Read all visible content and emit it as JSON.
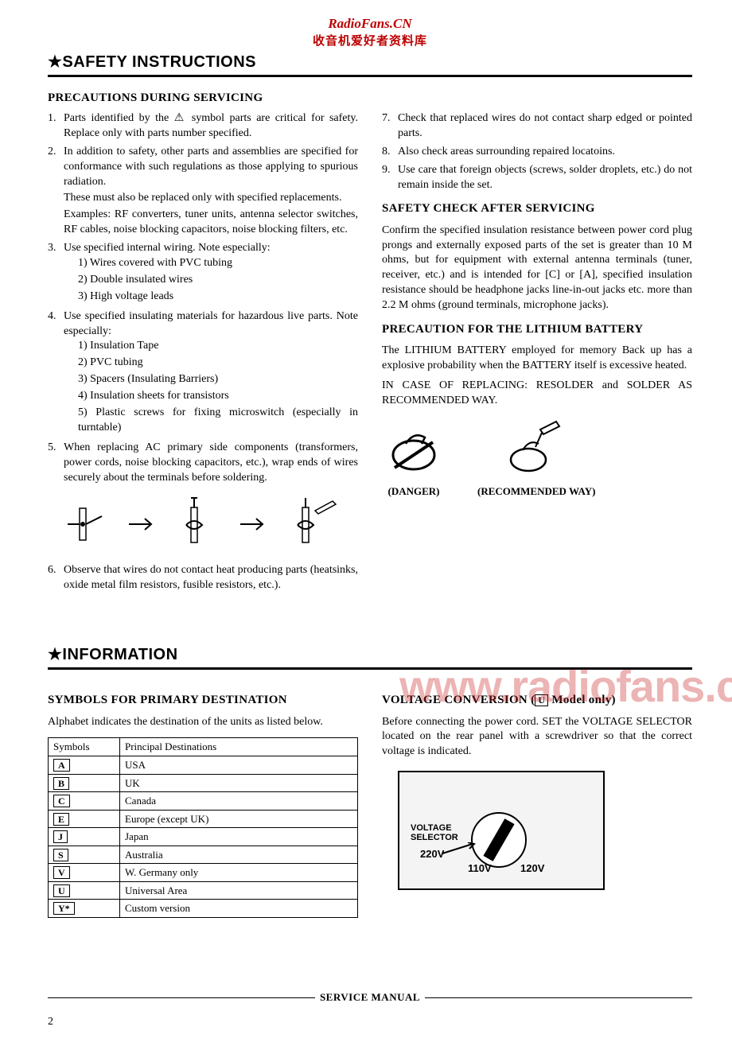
{
  "header": {
    "site_title": "RadioFans.CN",
    "site_subtitle": "收音机爱好者资料库"
  },
  "safety": {
    "title": "★SAFETY INSTRUCTIONS",
    "precautions_heading": "PRECAUTIONS DURING SERVICING",
    "items_left": [
      {
        "n": "1.",
        "text": "Parts identified by the ⚠ symbol parts are critical for safety. Replace only with parts number specified."
      },
      {
        "n": "2.",
        "text": "In addition to safety, other parts and assemblies are specified for conformance with such regulations as those applying to spurious radiation.",
        "extra": [
          "These must also be replaced only with specified replacements.",
          "Examples: RF converters, tuner units, antenna selector switches, RF cables, noise blocking capacitors, noise blocking filters, etc."
        ]
      },
      {
        "n": "3.",
        "text": "Use specified internal wiring. Note especially:",
        "sub": [
          "1) Wires covered with PVC tubing",
          "2) Double insulated wires",
          "3) High voltage leads"
        ]
      },
      {
        "n": "4.",
        "text": "Use specified insulating materials for hazardous live parts. Note especially:",
        "sub": [
          "1) Insulation Tape",
          "2) PVC tubing",
          "3) Spacers (Insulating Barriers)",
          "4) Insulation sheets for transistors",
          "5) Plastic screws for fixing microswitch (especially in turntable)"
        ]
      },
      {
        "n": "5.",
        "text": "When replacing AC primary side components (transformers, power cords, noise blocking capacitors, etc.), wrap ends of wires securely about the terminals before soldering."
      },
      {
        "n": "6.",
        "text": "Observe that wires do not contact heat producing parts (heatsinks, oxide metal film resistors, fusible resistors, etc.)."
      }
    ],
    "items_right_top": [
      {
        "n": "7.",
        "text": "Check that replaced wires do not contact sharp edged or pointed parts."
      },
      {
        "n": "8.",
        "text": "Also check areas surrounding repaired locatoins."
      },
      {
        "n": "9.",
        "text": "Use care that foreign objects (screws, solder droplets, etc.) do not remain inside the set."
      }
    ],
    "safety_check_heading": "SAFETY CHECK AFTER SERVICING",
    "safety_check_body": "Confirm the specified insulation resistance between power cord plug prongs and externally exposed parts of the set is greater than 10 M ohms, but for equipment with external antenna terminals (tuner, receiver, etc.) and is intended for [C] or [A], specified insulation resistance should be headphone jacks line-in-out jacks etc. more than 2.2 M ohms (ground terminals, microphone jacks).",
    "lithium_heading": "PRECAUTION FOR THE LITHIUM BATTERY",
    "lithium_body1": "The LITHIUM BATTERY employed for memory Back up has a explosive probability when the BATTERY itself is excessive heated.",
    "lithium_body2": "IN CASE OF REPLACING: RESOLDER and SOLDER AS RECOMMENDED WAY.",
    "danger_label": "(DANGER)",
    "recommended_label": "(RECOMMENDED WAY)"
  },
  "watermark": "www.radiofans.c",
  "information": {
    "title": "★INFORMATION",
    "symbols_heading": "SYMBOLS FOR PRIMARY DESTINATION",
    "symbols_intro": "Alphabet indicates the destination of the units as listed below.",
    "table": {
      "columns": [
        "Symbols",
        "Principal Destinations"
      ],
      "rows": [
        [
          "A",
          "USA"
        ],
        [
          "B",
          "UK"
        ],
        [
          "C",
          "Canada"
        ],
        [
          "E",
          "Europe (except UK)"
        ],
        [
          "J",
          "Japan"
        ],
        [
          "S",
          "Australia"
        ],
        [
          "V",
          "W. Germany only"
        ],
        [
          "U",
          "Universal Area"
        ],
        [
          "Y*",
          "Custom version"
        ]
      ]
    },
    "voltage_heading_pre": "VOLTAGE CONVERSION (",
    "voltage_heading_box": "U",
    "voltage_heading_post": " Model only)",
    "voltage_body": "Before connecting the power cord. SET the VOLTAGE SELECTOR located on the rear panel with a screwdriver so that the correct voltage is indicated.",
    "voltage_labels": {
      "selector": "VOLTAGE\nSELECTOR",
      "v220": "220V",
      "v110": "110V",
      "v120": "120V"
    }
  },
  "footer": {
    "label": "SERVICE MANUAL",
    "page": "2"
  }
}
